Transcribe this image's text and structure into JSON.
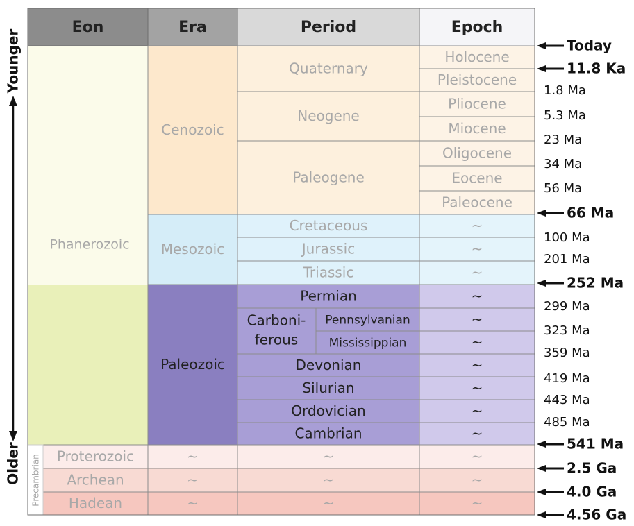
{
  "header": [
    "Eon",
    "Era",
    "Period",
    "Epoch"
  ],
  "axis": {
    "younger": "Younger",
    "older": "Older"
  },
  "precambrian": "Precambrian",
  "eons": [
    "Phanerozoic",
    "Proterozoic",
    "Archean",
    "Hadean"
  ],
  "eras": [
    "Cenozoic",
    "Mesozoic",
    "Paleozoic",
    "~",
    "~",
    "~"
  ],
  "periods": [
    "Quaternary",
    "Neogene",
    "Paleogene",
    "Cretaceous",
    "Jurassic",
    "Triassic",
    "Permian",
    "Devonian",
    "Silurian",
    "Ordovician",
    "Cambrian",
    "~",
    "~",
    "~"
  ],
  "carboniferous": {
    "lines": [
      "Carboni-",
      "ferous"
    ],
    "subperiods": [
      "Pennsylvanian",
      "Mississippian"
    ]
  },
  "epochs": [
    "Holocene",
    "Pleistocene",
    "Pliocene",
    "Miocene",
    "Oligocene",
    "Eocene",
    "Paleocene",
    "~",
    "~",
    "~",
    "~",
    "~",
    "~",
    "~",
    "~",
    "~",
    "~",
    "~",
    "~",
    "~"
  ],
  "boundaries": [
    {
      "label": "Today",
      "arrow": true
    },
    {
      "label": "11.8 Ka",
      "arrow": true
    },
    {
      "label": "1.8 Ma",
      "arrow": false
    },
    {
      "label": "5.3 Ma",
      "arrow": false
    },
    {
      "label": "23 Ma",
      "arrow": false
    },
    {
      "label": "34 Ma",
      "arrow": false
    },
    {
      "label": "56 Ma",
      "arrow": false
    },
    {
      "label": "66 Ma",
      "arrow": true
    },
    {
      "label": "100 Ma",
      "arrow": false
    },
    {
      "label": "201 Ma",
      "arrow": false
    },
    {
      "label": "252 Ma",
      "arrow": true
    },
    {
      "label": "299 Ma",
      "arrow": false
    },
    {
      "label": "323 Ma",
      "arrow": false
    },
    {
      "label": "359 Ma",
      "arrow": false
    },
    {
      "label": "419 Ma",
      "arrow": false
    },
    {
      "label": "443 Ma",
      "arrow": false
    },
    {
      "label": "485 Ma",
      "arrow": false
    },
    {
      "label": "541 Ma",
      "arrow": true
    },
    {
      "label": "2.5 Ga",
      "arrow": true
    },
    {
      "label": "4.0 Ga",
      "arrow": true
    },
    {
      "label": "4.56 Ga",
      "arrow": true
    }
  ]
}
